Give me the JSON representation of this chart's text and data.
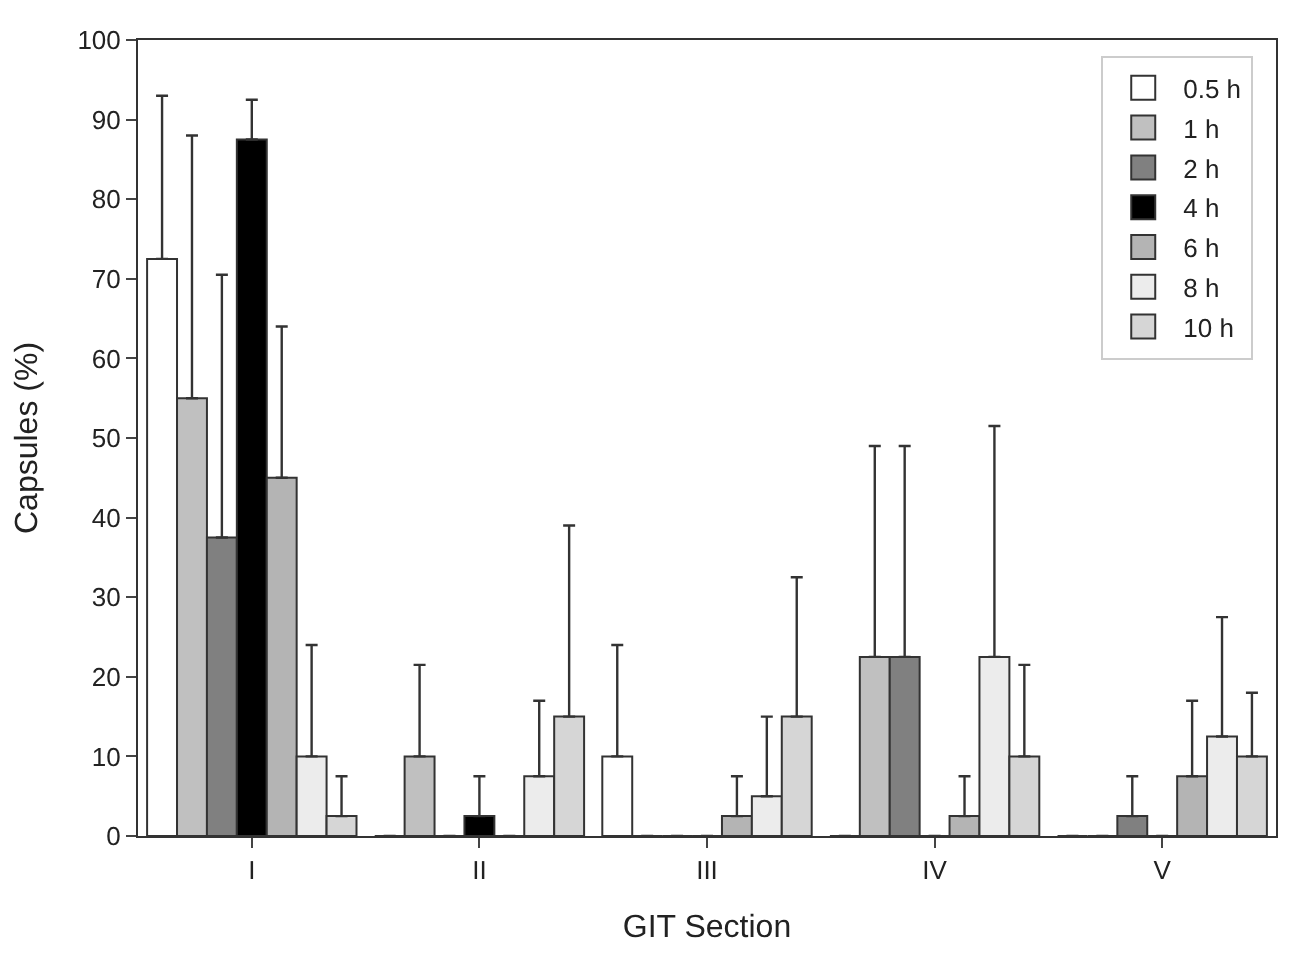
{
  "chart_data": {
    "type": "bar",
    "xlabel": "GIT Section",
    "ylabel": "Capsules (%)",
    "categories": [
      "I",
      "II",
      "III",
      "IV",
      "V"
    ],
    "ylim": [
      0,
      100
    ],
    "yticks": [
      0,
      10,
      20,
      30,
      40,
      50,
      60,
      70,
      80,
      90,
      100
    ],
    "legend": "top right",
    "series": [
      {
        "name": "0.5 h",
        "color": "#ffffff",
        "values": [
          72.5,
          0,
          10,
          0,
          0
        ],
        "errors": [
          [
            72.5,
            93
          ],
          null,
          [
            10,
            24
          ],
          null,
          null
        ]
      },
      {
        "name": "1 h",
        "color": "#c0c0c0",
        "values": [
          55,
          10,
          0,
          22.5,
          0
        ],
        "errors": [
          [
            55,
            88
          ],
          [
            10,
            21.5
          ],
          null,
          [
            22.5,
            49
          ],
          null
        ]
      },
      {
        "name": "2 h",
        "color": "#808080",
        "values": [
          37.5,
          0,
          0,
          22.5,
          2.5
        ],
        "errors": [
          [
            37.5,
            70.5
          ],
          null,
          null,
          [
            22.5,
            49
          ],
          [
            2.5,
            7.5
          ]
        ]
      },
      {
        "name": "4 h",
        "color": "#000000",
        "values": [
          87.5,
          2.5,
          0,
          0,
          0
        ],
        "errors": [
          [
            87.5,
            92.5
          ],
          [
            2.5,
            7.5
          ],
          null,
          null,
          null
        ]
      },
      {
        "name": "6 h",
        "color": "#b4b4b4",
        "values": [
          45,
          0,
          2.5,
          2.5,
          7.5
        ],
        "errors": [
          [
            45,
            64
          ],
          null,
          [
            2.5,
            7.5
          ],
          [
            2.5,
            7.5
          ],
          [
            7.5,
            17
          ]
        ]
      },
      {
        "name": "8 h",
        "color": "#ececec",
        "values": [
          10,
          7.5,
          5,
          22.5,
          12.5
        ],
        "errors": [
          [
            10,
            24
          ],
          [
            7.5,
            17
          ],
          [
            5,
            15
          ],
          [
            22.5,
            51.5
          ],
          [
            12.5,
            27.5
          ]
        ]
      },
      {
        "name": "10 h",
        "color": "#d6d6d6",
        "values": [
          2.5,
          15,
          15,
          10,
          10
        ],
        "errors": [
          [
            2.5,
            7.5
          ],
          [
            15,
            39
          ],
          [
            15,
            32.5
          ],
          [
            10,
            21.5
          ],
          [
            10,
            18
          ]
        ]
      }
    ]
  }
}
